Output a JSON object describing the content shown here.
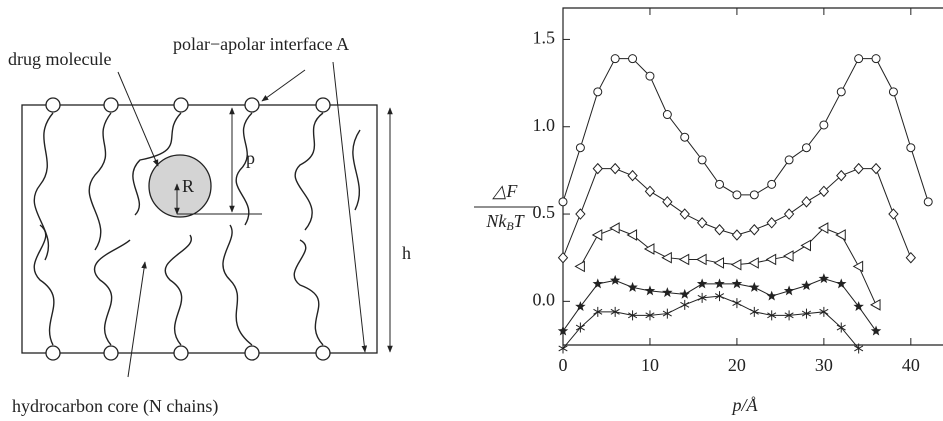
{
  "diagram": {
    "labels": {
      "drug": "drug molecule",
      "interface": "polar−apolar interface A",
      "p": "p",
      "R": "R",
      "h": "h",
      "core": "hydrocarbon core (N chains)"
    }
  },
  "chart_data": {
    "type": "line",
    "ylabel": {
      "numerator": "△F",
      "denominator": [
        "Nk",
        "B",
        "T"
      ]
    },
    "xlabel": "p/Å",
    "xlim": [
      0,
      43.7
    ],
    "ylim": [
      -0.25,
      1.68
    ],
    "xticks": [
      0,
      10,
      20,
      30,
      40
    ],
    "yticks": [
      {
        "value": 0.0,
        "label": "0.0"
      },
      0.5,
      {
        "value": 1.0,
        "label": "1.0"
      },
      1.5
    ],
    "series": [
      {
        "marker": "circle",
        "color": "#222222",
        "x": [
          0,
          2,
          4,
          6,
          8,
          10,
          12,
          14,
          16,
          18,
          20,
          22,
          24,
          26,
          28,
          30,
          32,
          34,
          36,
          38,
          40,
          42
        ],
        "values": [
          0.57,
          0.88,
          1.2,
          1.39,
          1.39,
          1.29,
          1.07,
          0.94,
          0.81,
          0.67,
          0.61,
          0.61,
          0.67,
          0.81,
          0.88,
          1.01,
          1.2,
          1.39,
          1.39,
          1.2,
          0.88,
          0.57
        ]
      },
      {
        "marker": "diamond",
        "color": "#222222",
        "x": [
          0,
          2,
          4,
          6,
          8,
          10,
          12,
          14,
          16,
          18,
          20,
          22,
          24,
          26,
          28,
          30,
          32,
          34,
          36,
          38,
          40
        ],
        "values": [
          0.25,
          0.5,
          0.76,
          0.76,
          0.72,
          0.63,
          0.57,
          0.5,
          0.45,
          0.41,
          0.38,
          0.41,
          0.45,
          0.5,
          0.57,
          0.63,
          0.72,
          0.76,
          0.76,
          0.5,
          0.25
        ]
      },
      {
        "marker": "triangle",
        "color": "#222222",
        "x": [
          2,
          4,
          6,
          8,
          10,
          12,
          14,
          16,
          18,
          20,
          22,
          24,
          26,
          28,
          30,
          32,
          34,
          36
        ],
        "values": [
          0.2,
          0.38,
          0.42,
          0.38,
          0.3,
          0.25,
          0.24,
          0.24,
          0.22,
          0.21,
          0.22,
          0.24,
          0.26,
          0.32,
          0.42,
          0.38,
          0.2,
          -0.02
        ]
      },
      {
        "marker": "star",
        "color": "#222222",
        "x": [
          0,
          2,
          4,
          6,
          8,
          10,
          12,
          14,
          16,
          18,
          20,
          22,
          24,
          26,
          28,
          30,
          32,
          34,
          36
        ],
        "values": [
          -0.17,
          -0.03,
          0.1,
          0.12,
          0.08,
          0.06,
          0.05,
          0.04,
          0.1,
          0.1,
          0.1,
          0.08,
          0.03,
          0.06,
          0.09,
          0.13,
          0.1,
          -0.03,
          -0.17
        ]
      },
      {
        "marker": "asterisk",
        "color": "#222222",
        "x": [
          0,
          2,
          4,
          6,
          8,
          10,
          12,
          14,
          16,
          18,
          20,
          22,
          24,
          26,
          28,
          30,
          32,
          34
        ],
        "values": [
          -0.27,
          -0.15,
          -0.06,
          -0.06,
          -0.08,
          -0.08,
          -0.07,
          -0.02,
          0.02,
          0.03,
          -0.01,
          -0.06,
          -0.08,
          -0.08,
          -0.07,
          -0.06,
          -0.15,
          -0.27
        ]
      }
    ]
  }
}
